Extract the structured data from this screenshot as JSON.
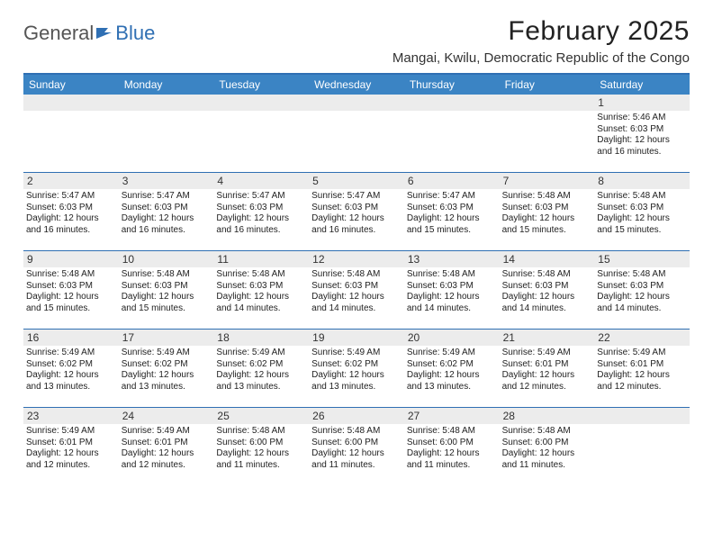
{
  "logo": {
    "text1": "General",
    "text2": "Blue"
  },
  "title": "February 2025",
  "location": "Mangai, Kwilu, Democratic Republic of the Congo",
  "colors": {
    "header_bg": "#3b84c4",
    "header_border": "#2f6fb3",
    "daynum_bg": "#ececec",
    "text": "#222222",
    "logo_gray": "#555555",
    "logo_blue": "#2f6fb3",
    "background": "#ffffff"
  },
  "day_names": [
    "Sunday",
    "Monday",
    "Tuesday",
    "Wednesday",
    "Thursday",
    "Friday",
    "Saturday"
  ],
  "weeks": [
    [
      null,
      null,
      null,
      null,
      null,
      null,
      {
        "n": "1",
        "sr": "5:46 AM",
        "ss": "6:03 PM",
        "dl": "12 hours and 16 minutes."
      }
    ],
    [
      {
        "n": "2",
        "sr": "5:47 AM",
        "ss": "6:03 PM",
        "dl": "12 hours and 16 minutes."
      },
      {
        "n": "3",
        "sr": "5:47 AM",
        "ss": "6:03 PM",
        "dl": "12 hours and 16 minutes."
      },
      {
        "n": "4",
        "sr": "5:47 AM",
        "ss": "6:03 PM",
        "dl": "12 hours and 16 minutes."
      },
      {
        "n": "5",
        "sr": "5:47 AM",
        "ss": "6:03 PM",
        "dl": "12 hours and 16 minutes."
      },
      {
        "n": "6",
        "sr": "5:47 AM",
        "ss": "6:03 PM",
        "dl": "12 hours and 15 minutes."
      },
      {
        "n": "7",
        "sr": "5:48 AM",
        "ss": "6:03 PM",
        "dl": "12 hours and 15 minutes."
      },
      {
        "n": "8",
        "sr": "5:48 AM",
        "ss": "6:03 PM",
        "dl": "12 hours and 15 minutes."
      }
    ],
    [
      {
        "n": "9",
        "sr": "5:48 AM",
        "ss": "6:03 PM",
        "dl": "12 hours and 15 minutes."
      },
      {
        "n": "10",
        "sr": "5:48 AM",
        "ss": "6:03 PM",
        "dl": "12 hours and 15 minutes."
      },
      {
        "n": "11",
        "sr": "5:48 AM",
        "ss": "6:03 PM",
        "dl": "12 hours and 14 minutes."
      },
      {
        "n": "12",
        "sr": "5:48 AM",
        "ss": "6:03 PM",
        "dl": "12 hours and 14 minutes."
      },
      {
        "n": "13",
        "sr": "5:48 AM",
        "ss": "6:03 PM",
        "dl": "12 hours and 14 minutes."
      },
      {
        "n": "14",
        "sr": "5:48 AM",
        "ss": "6:03 PM",
        "dl": "12 hours and 14 minutes."
      },
      {
        "n": "15",
        "sr": "5:48 AM",
        "ss": "6:03 PM",
        "dl": "12 hours and 14 minutes."
      }
    ],
    [
      {
        "n": "16",
        "sr": "5:49 AM",
        "ss": "6:02 PM",
        "dl": "12 hours and 13 minutes."
      },
      {
        "n": "17",
        "sr": "5:49 AM",
        "ss": "6:02 PM",
        "dl": "12 hours and 13 minutes."
      },
      {
        "n": "18",
        "sr": "5:49 AM",
        "ss": "6:02 PM",
        "dl": "12 hours and 13 minutes."
      },
      {
        "n": "19",
        "sr": "5:49 AM",
        "ss": "6:02 PM",
        "dl": "12 hours and 13 minutes."
      },
      {
        "n": "20",
        "sr": "5:49 AM",
        "ss": "6:02 PM",
        "dl": "12 hours and 13 minutes."
      },
      {
        "n": "21",
        "sr": "5:49 AM",
        "ss": "6:01 PM",
        "dl": "12 hours and 12 minutes."
      },
      {
        "n": "22",
        "sr": "5:49 AM",
        "ss": "6:01 PM",
        "dl": "12 hours and 12 minutes."
      }
    ],
    [
      {
        "n": "23",
        "sr": "5:49 AM",
        "ss": "6:01 PM",
        "dl": "12 hours and 12 minutes."
      },
      {
        "n": "24",
        "sr": "5:49 AM",
        "ss": "6:01 PM",
        "dl": "12 hours and 12 minutes."
      },
      {
        "n": "25",
        "sr": "5:48 AM",
        "ss": "6:00 PM",
        "dl": "12 hours and 11 minutes."
      },
      {
        "n": "26",
        "sr": "5:48 AM",
        "ss": "6:00 PM",
        "dl": "12 hours and 11 minutes."
      },
      {
        "n": "27",
        "sr": "5:48 AM",
        "ss": "6:00 PM",
        "dl": "12 hours and 11 minutes."
      },
      {
        "n": "28",
        "sr": "5:48 AM",
        "ss": "6:00 PM",
        "dl": "12 hours and 11 minutes."
      },
      null
    ]
  ],
  "labels": {
    "sunrise": "Sunrise: ",
    "sunset": "Sunset: ",
    "daylight": "Daylight: "
  }
}
